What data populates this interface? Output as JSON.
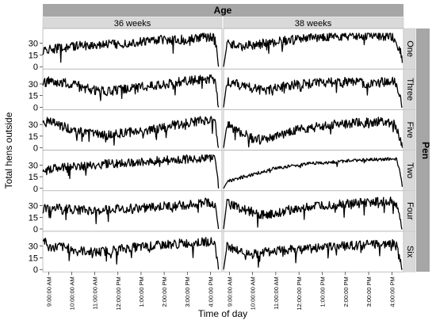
{
  "chart_data": {
    "type": "line",
    "facet_top_title": "Age",
    "facet_right_title": "Pen",
    "columns": [
      "36 weeks",
      "38 weeks"
    ],
    "rows": [
      "One",
      "Three",
      "Five",
      "Two",
      "Four",
      "Six"
    ],
    "ylabel": "Total hens outside",
    "xlabel": "Time of day",
    "yticks": [
      0,
      15,
      30
    ],
    "ylim": [
      0,
      45
    ],
    "x_ticks": [
      "9:00:00 AM",
      "10:00:00 AM",
      "11:00:00 AM",
      "12:00:00 PM",
      "1:00:00 PM",
      "2:00:00 PM",
      "3:00:00 PM",
      "4:00:00 PM"
    ],
    "x_range_hours": [
      8.75,
      16.5
    ],
    "grid": false,
    "panels": [
      {
        "age": "36 weeks",
        "pen": "One",
        "x": [
          8.75,
          9.0,
          9.5,
          10.0,
          10.5,
          11.0,
          11.5,
          12.0,
          12.5,
          13.0,
          13.5,
          14.0,
          14.5,
          15.0,
          15.5,
          16.0,
          16.2,
          16.35
        ],
        "y": [
          20,
          22,
          24,
          26,
          27,
          28,
          30,
          29,
          31,
          32,
          34,
          35,
          34,
          36,
          37,
          38,
          38,
          0
        ]
      },
      {
        "age": "38 weeks",
        "pen": "One",
        "x": [
          8.75,
          8.9,
          9.0,
          9.5,
          10.0,
          10.5,
          11.0,
          11.5,
          12.0,
          12.5,
          13.0,
          13.5,
          14.0,
          14.5,
          15.0,
          15.5,
          16.0,
          16.2,
          16.35,
          16.45
        ],
        "y": [
          0,
          28,
          30,
          26,
          28,
          30,
          32,
          34,
          35,
          37,
          38,
          39,
          40,
          40,
          40,
          39,
          38,
          32,
          22,
          5
        ]
      },
      {
        "age": "36 weeks",
        "pen": "Three",
        "x": [
          8.75,
          9.0,
          9.5,
          10.0,
          10.5,
          11.0,
          11.5,
          12.0,
          12.5,
          13.0,
          13.5,
          14.0,
          14.5,
          15.0,
          15.5,
          16.0,
          16.2,
          16.35
        ],
        "y": [
          30,
          34,
          32,
          30,
          26,
          22,
          20,
          22,
          24,
          26,
          28,
          30,
          32,
          34,
          35,
          36,
          36,
          0
        ]
      },
      {
        "age": "38 weeks",
        "pen": "Three",
        "x": [
          8.75,
          8.9,
          9.0,
          9.5,
          10.0,
          10.5,
          11.0,
          11.5,
          12.0,
          12.5,
          13.0,
          13.5,
          14.0,
          14.5,
          15.0,
          15.5,
          16.0,
          16.2,
          16.35,
          16.45
        ],
        "y": [
          0,
          34,
          32,
          28,
          24,
          22,
          24,
          28,
          30,
          30,
          32,
          32,
          33,
          32,
          30,
          32,
          34,
          30,
          16,
          0
        ]
      },
      {
        "age": "36 weeks",
        "pen": "Five",
        "x": [
          8.75,
          9.0,
          9.5,
          10.0,
          10.5,
          11.0,
          11.5,
          12.0,
          12.5,
          13.0,
          13.5,
          14.0,
          14.5,
          15.0,
          15.5,
          16.0,
          16.2,
          16.35
        ],
        "y": [
          32,
          34,
          28,
          24,
          20,
          18,
          16,
          18,
          20,
          22,
          24,
          26,
          30,
          32,
          34,
          36,
          36,
          0
        ]
      },
      {
        "age": "38 weeks",
        "pen": "Five",
        "x": [
          8.75,
          8.9,
          9.0,
          9.5,
          10.0,
          10.5,
          11.0,
          11.5,
          12.0,
          12.5,
          13.0,
          13.5,
          14.0,
          14.5,
          15.0,
          15.5,
          16.0,
          16.2,
          16.35,
          16.45
        ],
        "y": [
          0,
          30,
          28,
          20,
          12,
          10,
          14,
          20,
          24,
          26,
          28,
          30,
          30,
          32,
          33,
          34,
          32,
          28,
          10,
          0
        ]
      },
      {
        "age": "36 weeks",
        "pen": "Two",
        "x": [
          8.75,
          9.0,
          9.5,
          10.0,
          10.5,
          11.0,
          11.5,
          12.0,
          12.5,
          13.0,
          13.5,
          14.0,
          14.5,
          15.0,
          15.5,
          16.0,
          16.2,
          16.35
        ],
        "y": [
          18,
          24,
          26,
          28,
          29,
          30,
          31,
          32,
          33,
          34,
          35,
          36,
          37,
          38,
          39,
          40,
          38,
          0
        ]
      },
      {
        "age": "38 weeks",
        "pen": "Two",
        "x": [
          8.75,
          8.9,
          9.0,
          9.5,
          10.0,
          10.5,
          11.0,
          11.5,
          12.0,
          12.5,
          13.0,
          13.5,
          14.0,
          14.5,
          15.0,
          15.5,
          16.0,
          16.2,
          16.35,
          16.45
        ],
        "y": [
          0,
          8,
          10,
          14,
          18,
          22,
          26,
          28,
          30,
          32,
          33,
          34,
          35,
          36,
          37,
          37,
          38,
          38,
          20,
          2
        ]
      },
      {
        "age": "36 weeks",
        "pen": "Four",
        "x": [
          8.75,
          9.0,
          9.5,
          10.0,
          10.5,
          11.0,
          11.5,
          12.0,
          12.5,
          13.0,
          13.5,
          14.0,
          14.5,
          15.0,
          15.5,
          16.0,
          16.2,
          16.35
        ],
        "y": [
          26,
          28,
          26,
          25,
          24,
          24,
          25,
          26,
          26,
          27,
          28,
          29,
          30,
          31,
          33,
          34,
          33,
          0
        ]
      },
      {
        "age": "38 weeks",
        "pen": "Four",
        "x": [
          8.75,
          8.9,
          9.0,
          9.5,
          10.0,
          10.5,
          11.0,
          11.5,
          12.0,
          12.5,
          13.0,
          13.5,
          14.0,
          14.5,
          15.0,
          15.5,
          16.0,
          16.2,
          16.35,
          16.45
        ],
        "y": [
          0,
          36,
          32,
          26,
          22,
          18,
          20,
          24,
          26,
          28,
          30,
          31,
          32,
          33,
          34,
          35,
          36,
          30,
          12,
          0
        ]
      },
      {
        "age": "36 weeks",
        "pen": "Six",
        "x": [
          8.75,
          9.0,
          9.5,
          10.0,
          10.5,
          11.0,
          11.5,
          12.0,
          12.5,
          13.0,
          13.5,
          14.0,
          14.5,
          15.0,
          15.5,
          16.0,
          16.2,
          16.35
        ],
        "y": [
          40,
          28,
          30,
          26,
          24,
          22,
          24,
          26,
          28,
          29,
          30,
          32,
          33,
          34,
          35,
          36,
          34,
          0
        ]
      },
      {
        "age": "38 weeks",
        "pen": "Six",
        "x": [
          8.75,
          8.9,
          9.0,
          9.5,
          10.0,
          10.5,
          11.0,
          11.5,
          12.0,
          12.5,
          13.0,
          13.5,
          14.0,
          14.5,
          15.0,
          15.5,
          16.0,
          16.2,
          16.35,
          16.45
        ],
        "y": [
          0,
          30,
          28,
          22,
          20,
          22,
          24,
          25,
          26,
          27,
          28,
          29,
          30,
          31,
          32,
          33,
          34,
          30,
          10,
          0
        ]
      }
    ]
  }
}
